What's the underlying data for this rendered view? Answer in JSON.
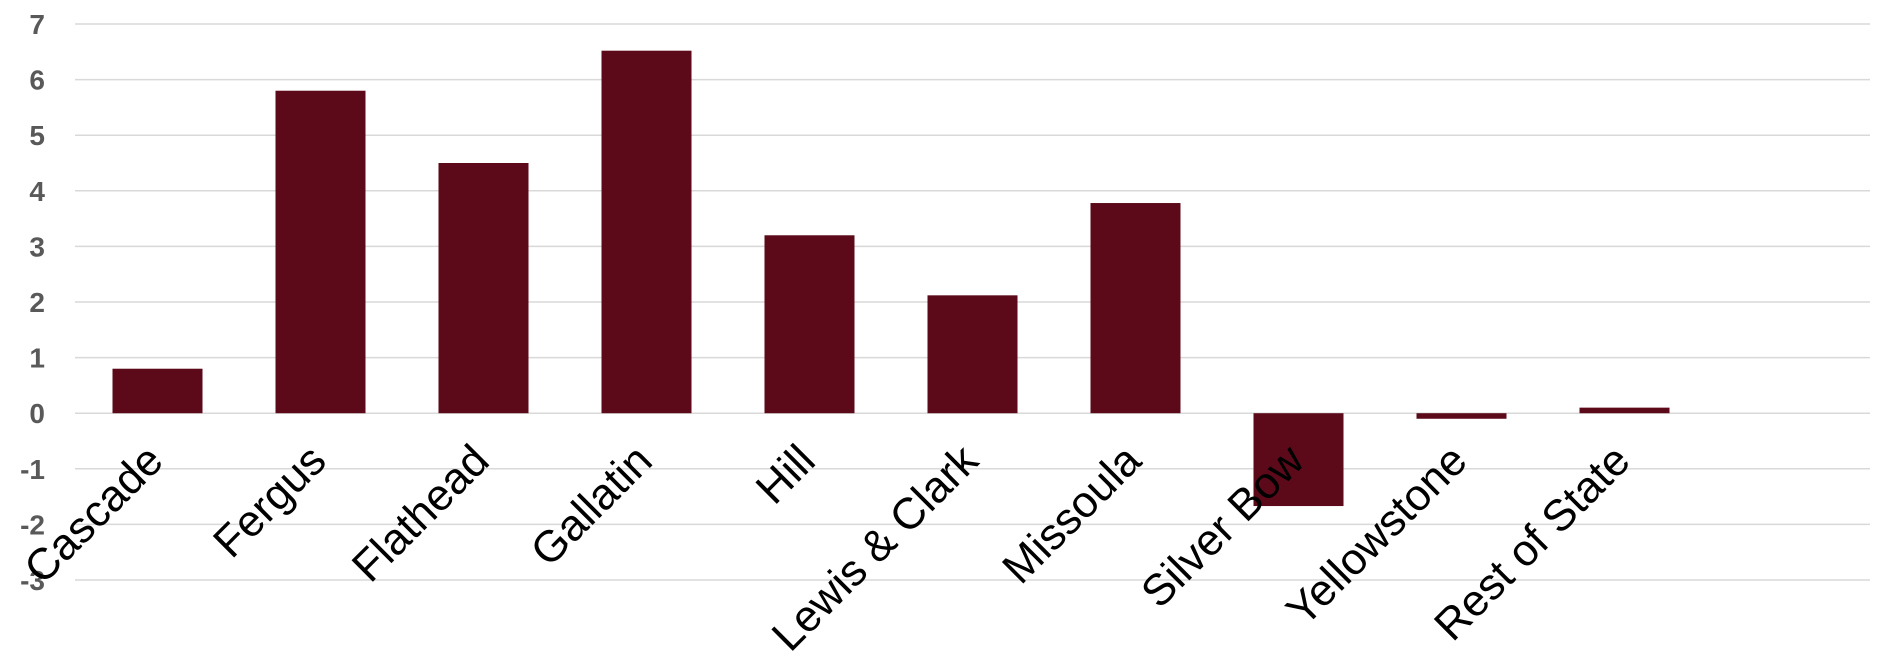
{
  "chart_data": {
    "type": "bar",
    "categories": [
      "Cascade",
      "Fergus",
      "Flathead",
      "Gallatin",
      "Hill",
      "Lewis & Clark",
      "Missoula",
      "Silver Bow",
      "Yellowstone",
      "Rest of State"
    ],
    "values": [
      0.8,
      5.8,
      4.5,
      6.52,
      3.2,
      2.12,
      3.78,
      -1.67,
      -0.1,
      0.1
    ],
    "ylim": [
      -3,
      7
    ],
    "yticks": [
      "-3",
      "-2",
      "-1",
      "0",
      "1",
      "2",
      "3",
      "4",
      "5",
      "6",
      "7"
    ],
    "grid": true,
    "legend": "none",
    "bar_color": "#5c0a1a",
    "title": "",
    "xlabel": "",
    "ylabel": ""
  }
}
